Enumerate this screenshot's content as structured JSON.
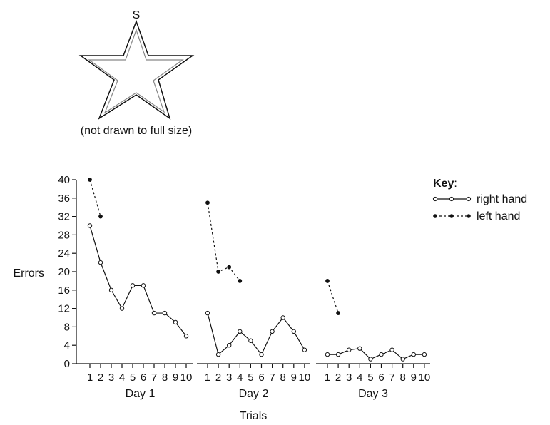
{
  "star": {
    "label": "S",
    "caption": "(not drawn to full size)"
  },
  "chart_data": {
    "type": "line",
    "ylabel": "Errors",
    "xlabel": "Trials",
    "ylim": [
      0,
      40
    ],
    "yticks": [
      0,
      4,
      8,
      12,
      16,
      20,
      24,
      28,
      32,
      36,
      40
    ],
    "x": [
      1,
      2,
      3,
      4,
      5,
      6,
      7,
      8,
      9,
      10
    ],
    "panels": [
      {
        "label": "Day 1",
        "series": [
          {
            "name": "right hand",
            "values": [
              30,
              22,
              16,
              12,
              17,
              17,
              11,
              11,
              9,
              6
            ]
          },
          {
            "name": "left hand",
            "values": [
              40,
              32,
              null,
              null,
              null,
              null,
              null,
              null,
              null,
              null
            ]
          }
        ]
      },
      {
        "label": "Day 2",
        "series": [
          {
            "name": "right hand",
            "values": [
              11,
              2,
              4,
              7,
              5,
              2,
              7,
              10,
              7,
              3
            ]
          },
          {
            "name": "left hand",
            "values": [
              35,
              20,
              21,
              18,
              null,
              null,
              null,
              null,
              null,
              null
            ]
          }
        ]
      },
      {
        "label": "Day 3",
        "series": [
          {
            "name": "right hand",
            "values": [
              2,
              2,
              3,
              3.3,
              1,
              2,
              3,
              1,
              2,
              2
            ]
          },
          {
            "name": "left hand",
            "values": [
              18,
              11,
              null,
              null,
              null,
              null,
              null,
              null,
              null,
              null
            ]
          }
        ]
      }
    ],
    "legend": {
      "title": "Key",
      "title_suffix": ":",
      "position": "top-right",
      "items": [
        {
          "name": "right hand",
          "style": "solid",
          "marker": "open-circle"
        },
        {
          "name": "left hand",
          "style": "dashed",
          "marker": "filled-circle"
        }
      ]
    }
  }
}
